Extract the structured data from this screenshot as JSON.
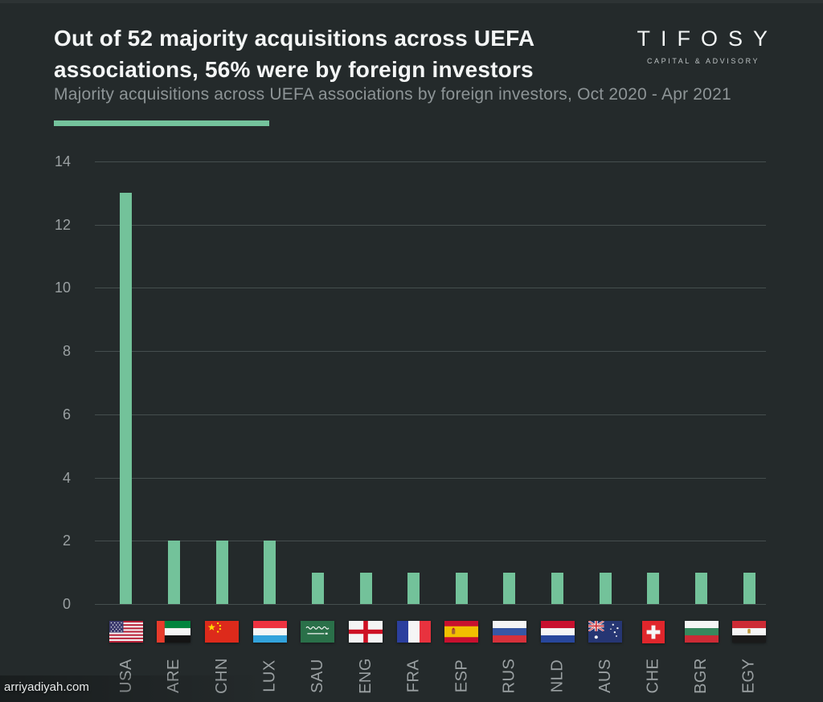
{
  "page": {
    "background_color": "#242a2b"
  },
  "header": {
    "title_lines": [
      "Out of 52 majority acquisitions across UEFA",
      "associations, 56% were by foreign investors"
    ],
    "subtitle": "Majority acquisitions across UEFA associations by foreign investors, Oct 2020 - Apr 2021",
    "accent_color": "#74c39c"
  },
  "logo": {
    "name": "TIFOSY",
    "tagline": "CAPITAL & ADVISORY"
  },
  "watermark": "arriyadiyah.com",
  "chart_data": {
    "type": "bar",
    "title": "Out of 52 majority acquisitions across UEFA associations, 56% were by foreign investors",
    "subtitle": "Majority acquisitions across UEFA associations by foreign investors, Oct 2020 - Apr 2021",
    "categories": [
      "USA",
      "ARE",
      "CHN",
      "LUX",
      "SAU",
      "ENG",
      "FRA",
      "ESP",
      "RUS",
      "NLD",
      "AUS",
      "CHE",
      "BGR",
      "EGY"
    ],
    "values": [
      13,
      2,
      2,
      2,
      1,
      1,
      1,
      1,
      1,
      1,
      1,
      1,
      1,
      1
    ],
    "flag_icons": [
      "usa-flag-icon",
      "are-flag-icon",
      "chn-flag-icon",
      "lux-flag-icon",
      "sau-flag-icon",
      "eng-flag-icon",
      "fra-flag-icon",
      "esp-flag-icon",
      "rus-flag-icon",
      "nld-flag-icon",
      "aus-flag-icon",
      "che-flag-icon",
      "bgr-flag-icon",
      "egy-flag-icon"
    ],
    "xlabel": "",
    "ylabel": "",
    "yticks": [
      0,
      2,
      4,
      6,
      8,
      10,
      12,
      14
    ],
    "ylim": [
      0,
      14
    ],
    "grid": true,
    "legend": false,
    "bar_color": "#73c29a",
    "gridline_color": "#454e4e",
    "tick_label_color": "#9aa0a2"
  }
}
